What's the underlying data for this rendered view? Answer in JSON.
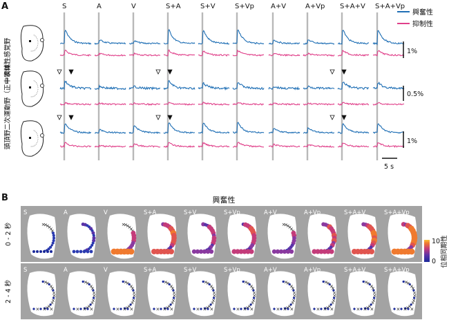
{
  "panel_a": {
    "letter": "A",
    "conditions": [
      "S",
      "A",
      "V",
      "S+A",
      "S+V",
      "S+Vp",
      "A+V",
      "A+Vp",
      "S+A+V",
      "S+A+Vp"
    ],
    "row_labels": [
      "一次体性感覚野",
      "二次運動野（正中領域）",
      "頭頂野"
    ],
    "legend": [
      {
        "label": "興奮性",
        "color": "#1f6fb5"
      },
      {
        "label": "抑制性",
        "color": "#e0408a"
      }
    ],
    "scale_labels": [
      "1%",
      "0.5%",
      "1%"
    ],
    "time_scale": "5 s"
  },
  "panel_b": {
    "letter": "B",
    "title": "興奮性",
    "conditions": [
      "S",
      "A",
      "V",
      "S+A",
      "S+V",
      "S+Vp",
      "A+V",
      "A+Vp",
      "S+A+V",
      "S+A+Vp"
    ],
    "row_labels": [
      "0 - 2 秒",
      "2 - 4 秒"
    ],
    "colorbar": {
      "label": "位相同期性",
      "max": "10",
      "min": "0"
    }
  },
  "colors": {
    "excitatory": "#1f6fb5",
    "inhibitory": "#e0408a",
    "stim_bar": "#b8b8b8",
    "panel_b_bg": "#a3a3a3"
  }
}
